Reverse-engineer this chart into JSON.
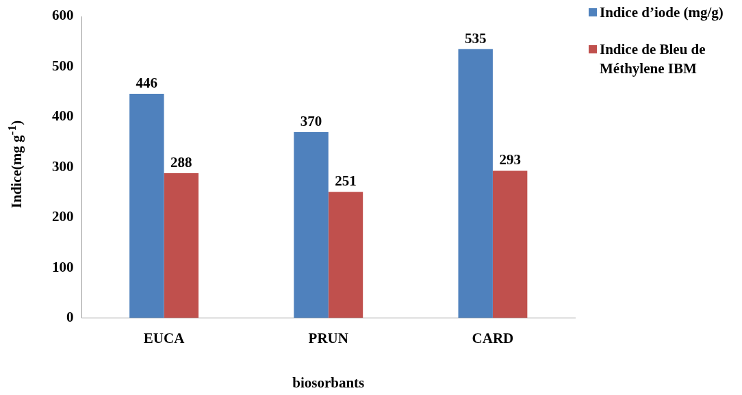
{
  "chart_data": {
    "type": "bar",
    "xlabel": "biosorbants",
    "ylabel": "Indice(mg g$^{-1}$)",
    "categories": [
      "EUCA",
      "PRUN",
      "CARD"
    ],
    "series": [
      {
        "name": "Indice d’iode (mg/g)",
        "color": "#4f81bd",
        "values": [
          446,
          370,
          535
        ]
      },
      {
        "name": "Indice de Bleu de Méthylene IBM",
        "color": "#c0504d",
        "values": [
          288,
          251,
          293
        ]
      }
    ],
    "ylim": [
      0,
      600
    ],
    "yticks": [
      0,
      100,
      200,
      300,
      400,
      500,
      600
    ],
    "grid": false,
    "legend": "top right",
    "data_labels": true
  }
}
